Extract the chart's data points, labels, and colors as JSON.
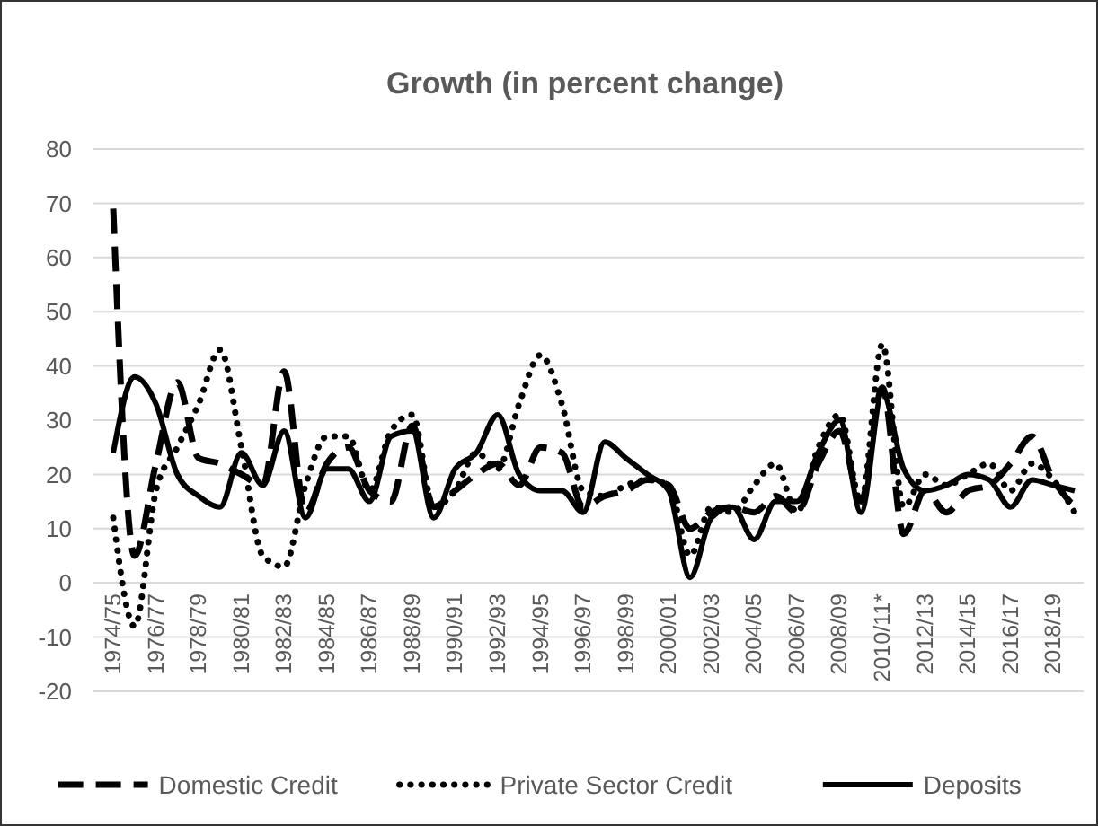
{
  "chart_data": {
    "type": "line",
    "title": "Growth (in percent change)",
    "categories": [
      "1974/75",
      null,
      "1976/77",
      null,
      "1978/79",
      null,
      "1980/81",
      null,
      "1982/83",
      null,
      "1984/85",
      null,
      "1986/87",
      null,
      "1988/89",
      null,
      "1990/91",
      null,
      "1992/93",
      null,
      "1994/95",
      null,
      "1996/97",
      null,
      "1998/99",
      null,
      "2000/01",
      null,
      "2002/03",
      null,
      "2004/05",
      null,
      "2006/07",
      null,
      "2008/09",
      null,
      "2010/11*",
      null,
      "2012/13",
      null,
      "2014/15",
      null,
      "2016/17",
      null,
      "2018/19",
      null
    ],
    "series": [
      {
        "name": "Domestic Credit",
        "color": "#000000",
        "line_style": "dashed",
        "values": [
          69,
          5,
          22,
          37,
          23,
          22,
          20,
          18,
          39,
          13,
          22,
          25,
          17,
          15,
          29,
          14,
          17,
          20,
          22,
          18,
          25,
          24,
          14,
          16,
          17,
          19,
          18,
          10,
          13,
          14,
          13,
          16,
          13,
          22,
          28,
          15,
          36,
          9,
          17,
          13,
          17,
          18,
          22,
          27,
          19,
          14
        ]
      },
      {
        "name": "Private Sector Credit",
        "color": "#000000",
        "line_style": "dotted",
        "values": [
          12,
          -8,
          17,
          25,
          33,
          43,
          25,
          5,
          3,
          18,
          27,
          27,
          17,
          28,
          31,
          14,
          17,
          24,
          21,
          33,
          42,
          33,
          17,
          16,
          18,
          19,
          18,
          5,
          14,
          13,
          18,
          22,
          13,
          25,
          31,
          15,
          44,
          14,
          20,
          18,
          20,
          22,
          17,
          22,
          19,
          13
        ]
      },
      {
        "name": "Deposits",
        "color": "#000000",
        "line_style": "solid",
        "values": [
          24,
          38,
          33,
          20,
          16,
          14,
          24,
          18,
          28,
          12,
          21,
          21,
          15,
          27,
          28,
          12,
          21,
          24,
          31,
          20,
          17,
          17,
          13,
          26,
          23,
          20,
          17,
          1,
          12,
          14,
          8,
          15,
          15,
          24,
          30,
          13,
          35,
          21,
          17,
          18,
          20,
          19,
          14,
          19,
          18,
          17
        ]
      }
    ],
    "ylim": [
      -20,
      80
    ],
    "yticks": [
      -20,
      -10,
      0,
      10,
      20,
      30,
      40,
      50,
      60,
      70,
      80
    ],
    "grid": "y",
    "legend": "bottom"
  }
}
